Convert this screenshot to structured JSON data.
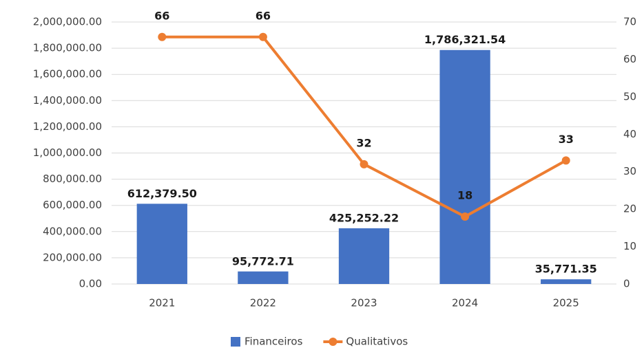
{
  "chart_data": {
    "type": "combo",
    "categories": [
      "2021",
      "2022",
      "2023",
      "2024",
      "2025"
    ],
    "series": [
      {
        "name": "Financeiros",
        "type": "bar",
        "color": "#4472c4",
        "values": [
          612379.5,
          95772.71,
          425252.22,
          1786321.54,
          35771.35
        ],
        "value_labels": [
          "612,379.50",
          "95,772.71",
          "425,252.22",
          "1,786,321.54",
          "35,771.35"
        ]
      },
      {
        "name": "Qualitativos",
        "type": "line",
        "axis": "y2",
        "color": "#ed7d31",
        "values": [
          66,
          66,
          32,
          18,
          33
        ]
      }
    ],
    "ylim": [
      0,
      2000000
    ],
    "yticks": [
      {
        "value": 0,
        "label": "0.00"
      },
      {
        "value": 200000,
        "label": "200,000.00"
      },
      {
        "value": 400000,
        "label": "400,000.00"
      },
      {
        "value": 600000,
        "label": "600,000.00"
      },
      {
        "value": 800000,
        "label": "800,000.00"
      },
      {
        "value": 1000000,
        "label": "1,000,000.00"
      },
      {
        "value": 1200000,
        "label": "1,200,000.00"
      },
      {
        "value": 1400000,
        "label": "1,400,000.00"
      },
      {
        "value": 1600000,
        "label": "1,600,000.00"
      },
      {
        "value": 1800000,
        "label": "1,800,000.00"
      },
      {
        "value": 2000000,
        "label": "2,000,000.00"
      }
    ],
    "y2lim": [
      0,
      70
    ],
    "y2ticks": [
      0,
      10,
      20,
      30,
      40,
      50,
      60,
      70
    ],
    "grid": true,
    "legend": "bottom"
  }
}
